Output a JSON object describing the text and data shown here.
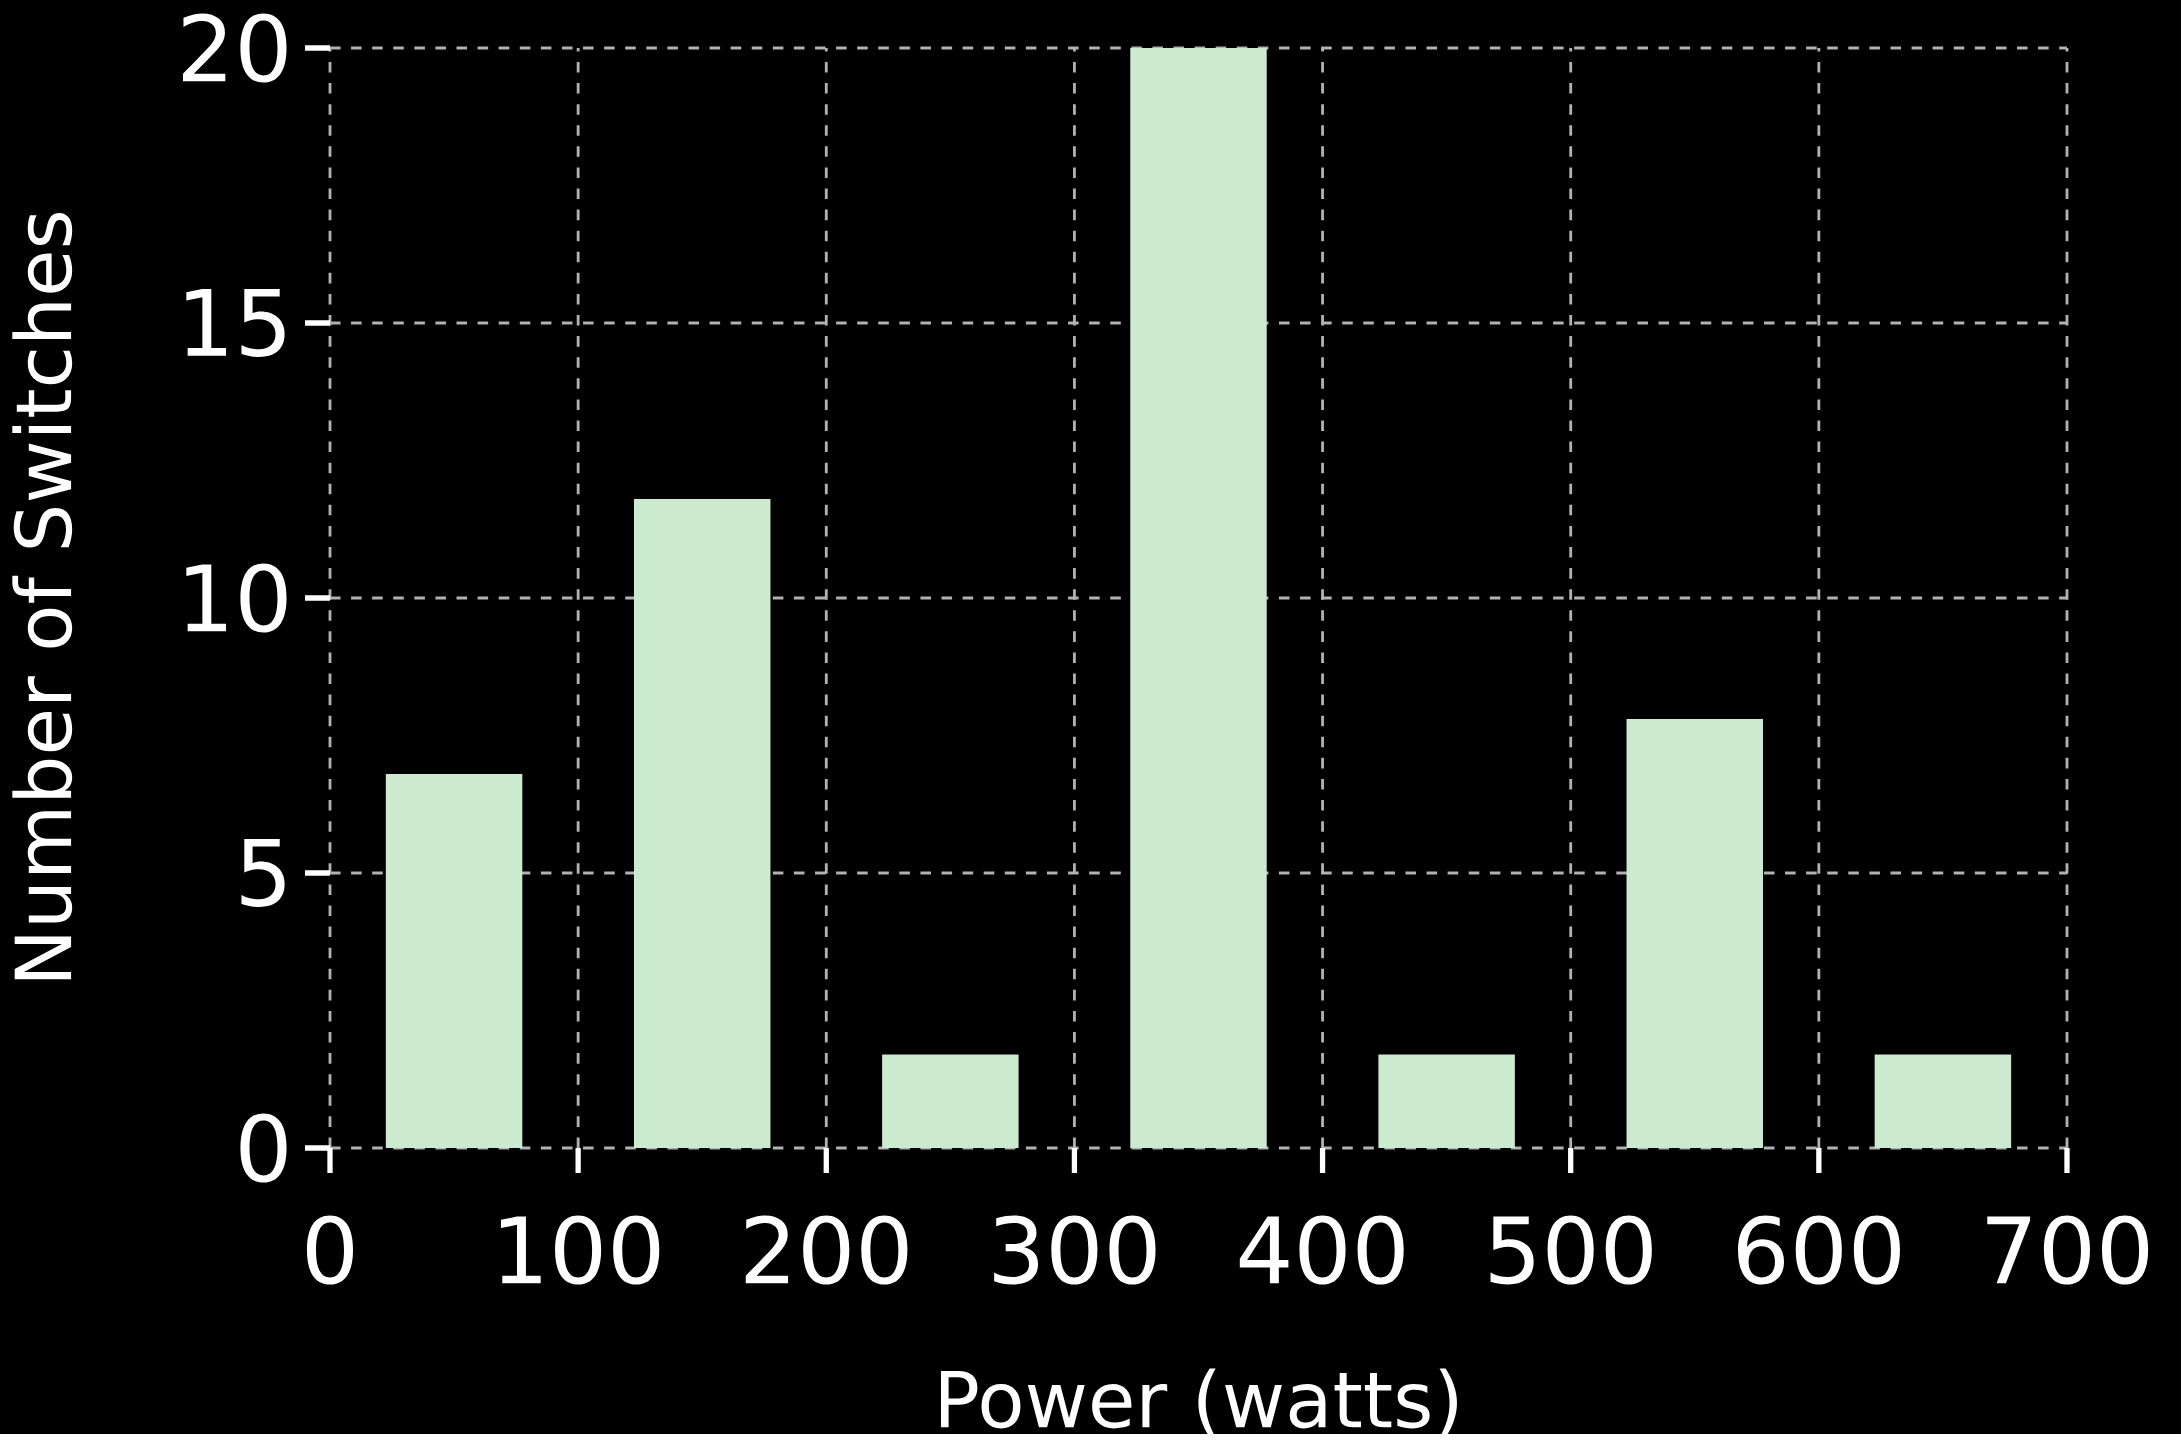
{
  "chart_data": {
    "type": "bar",
    "xlabel": "Power (watts)",
    "ylabel": "Number of Switches",
    "x": [
      50,
      150,
      250,
      350,
      450,
      550,
      650
    ],
    "values": [
      6.8,
      11.8,
      1.7,
      20,
      1.7,
      7.8,
      1.7
    ],
    "color": "#ccead0",
    "xlim": [
      0,
      700
    ],
    "xticks": [
      0,
      100,
      200,
      300,
      400,
      500,
      600,
      700
    ],
    "ylim": [
      0,
      20
    ],
    "yticks": [
      0,
      5,
      10,
      15,
      20
    ],
    "grid": true
  }
}
